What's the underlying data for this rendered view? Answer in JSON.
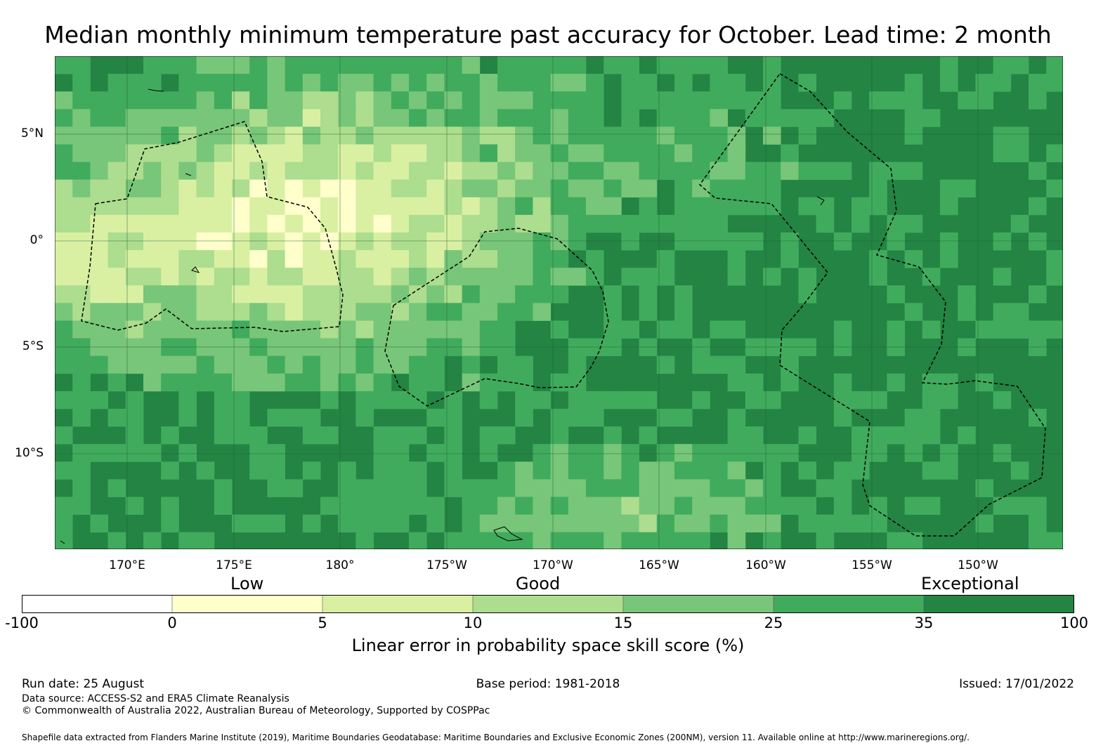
{
  "title": "Median monthly minimum temperature past accuracy for October. Lead time: 2 month",
  "map": {
    "lat_labels": [
      "5°N",
      "0°",
      "5°S",
      "10°S"
    ],
    "lon_labels": [
      "170°E",
      "175°E",
      "180°",
      "175°W",
      "170°W",
      "165°W",
      "160°W",
      "155°W",
      "150°W"
    ]
  },
  "legend": {
    "categories": [
      "Low",
      "Good",
      "Exceptional"
    ],
    "bins": [
      {
        "from": -100,
        "to": 0,
        "color": "#ffffff"
      },
      {
        "from": 0,
        "to": 5,
        "color": "#ffffcc"
      },
      {
        "from": 5,
        "to": 10,
        "color": "#d9f0a3"
      },
      {
        "from": 10,
        "to": 15,
        "color": "#addd8e"
      },
      {
        "from": 15,
        "to": 25,
        "color": "#78c679"
      },
      {
        "from": 25,
        "to": 35,
        "color": "#41ab5d"
      },
      {
        "from": 35,
        "to": 100,
        "color": "#238443"
      }
    ],
    "tick_labels": [
      "-100",
      "0",
      "5",
      "10",
      "15",
      "25",
      "35",
      "100"
    ],
    "title": "Linear error in probability space skill score (%)"
  },
  "footer": {
    "run_date": "Run date: 25 August",
    "base_period": "Base period: 1981-2018",
    "issued": "Issued: 17/01/2022",
    "data_source": "Data source: ACCESS-S2 and ERA5 Climate Reanalysis",
    "copyright": "© Commonwealth of Australia 2022, Australian Bureau of Meteorology, Supported by COSPPac",
    "shapefile": "Shapefile data extracted from Flanders Marine Institute (2019), Maritime Boundaries Geodatabase: Maritime Boundaries and Exclusive Economic Zones (200NM), version 11. Available online at http://www.marineregions.org/."
  }
}
